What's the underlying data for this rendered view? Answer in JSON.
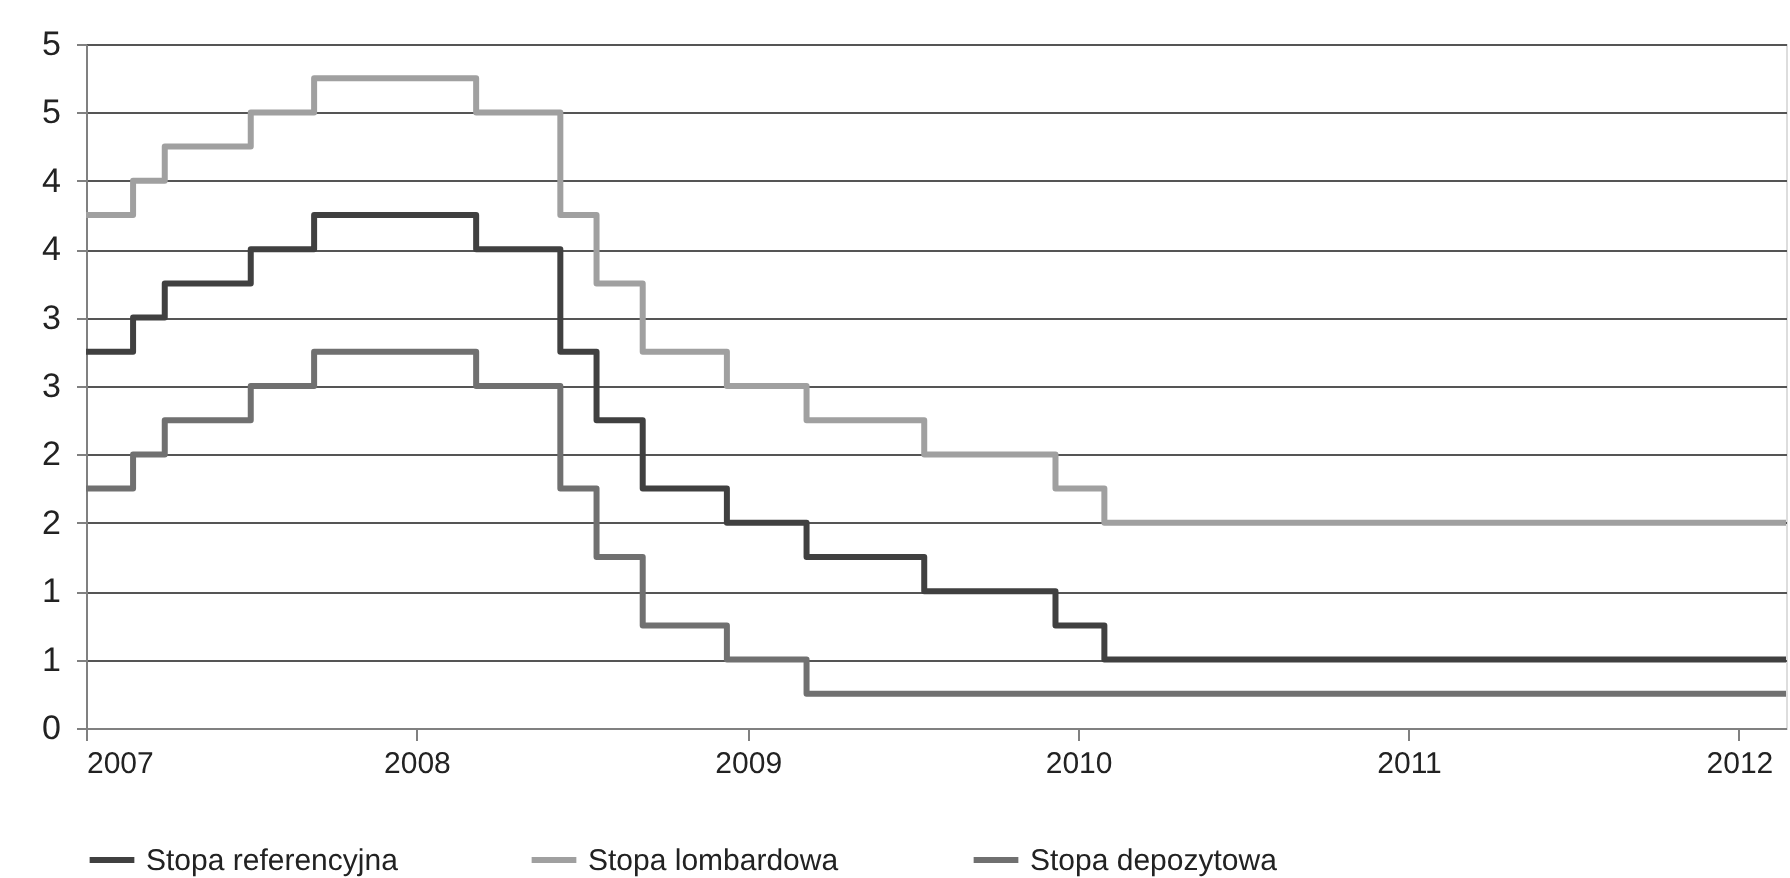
{
  "chart_data": {
    "type": "step",
    "x": [
      "2007-01-01",
      "2007-02-22",
      "2007-03-29",
      "2007-07-02",
      "2007-09-10",
      "2008-03-07",
      "2008-06-08",
      "2008-07-18",
      "2008-09-07",
      "2008-12-09",
      "2009-03-07",
      "2009-07-15",
      "2009-12-07",
      "2010-01-30",
      "2012-02-22"
    ],
    "series": [
      {
        "name": "Stopa referencyjna",
        "color": "#404040",
        "values": [
          2.75,
          3.0,
          3.25,
          3.5,
          3.75,
          3.5,
          2.75,
          2.25,
          1.75,
          1.5,
          1.25,
          1.0,
          0.75,
          0.5,
          0.5
        ]
      },
      {
        "name": "Stopa lombardowa",
        "color": "#a0a0a0",
        "values": [
          3.75,
          4.0,
          4.25,
          4.5,
          4.75,
          4.5,
          3.75,
          3.25,
          2.75,
          2.5,
          2.25,
          2.0,
          1.75,
          1.5,
          1.5
        ]
      },
      {
        "name": "Stopa depozytowa",
        "color": "#707070",
        "values": [
          1.75,
          2.0,
          2.25,
          2.5,
          2.75,
          2.5,
          1.75,
          1.25,
          0.75,
          0.5,
          0.25,
          0.25,
          0.25,
          0.25,
          0.25
        ]
      }
    ],
    "xlim": [
      "2007-01-01",
      "2012-02-22"
    ],
    "xticks": [
      "2007",
      "2008",
      "2009",
      "2010",
      "2011",
      "2012"
    ],
    "ylim": [
      0,
      5
    ],
    "yticks": [
      0,
      {
        "value": 0.5,
        "label": "1"
      },
      1,
      {
        "value": 1.5,
        "label": "2"
      },
      2,
      {
        "value": 2.5,
        "label": "3"
      },
      3,
      {
        "value": 3.5,
        "label": "4"
      },
      4,
      {
        "value": 4.5,
        "label": "5"
      },
      5
    ],
    "grid": "y",
    "legend": "bottom",
    "line_style": "solid",
    "marker": "none"
  }
}
